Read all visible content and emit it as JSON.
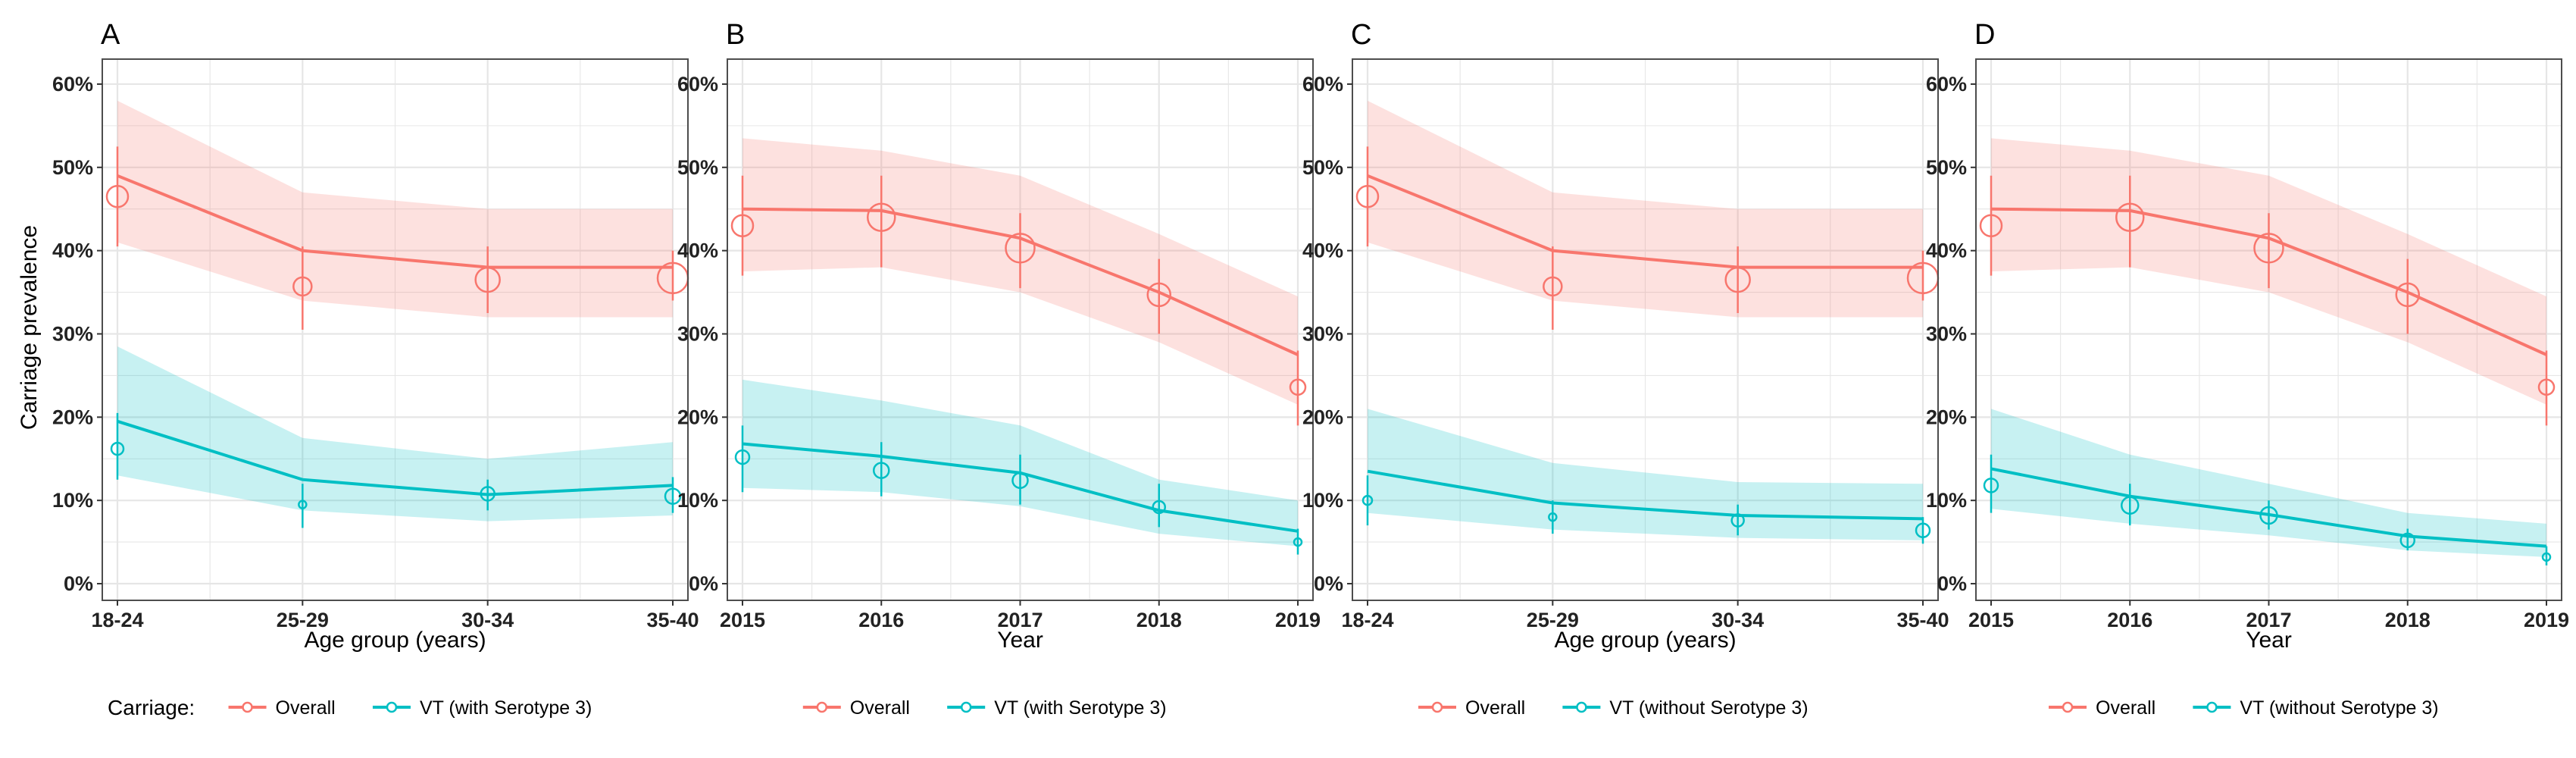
{
  "figure": {
    "y_axis_title": "Carriage prevalence",
    "y_ticks": [
      "0%",
      "10%",
      "20%",
      "30%",
      "40%",
      "50%",
      "60%"
    ]
  },
  "colors": {
    "overall": "#F8766D",
    "vt": "#00BFC4",
    "grid": "#E6E6E6",
    "panel_border": "#4D4D4D"
  },
  "chart_data": [
    {
      "panel": "A",
      "type": "line",
      "xlabel": "Age group (years)",
      "ylabel": "Carriage prevalence",
      "categories": [
        "18-24",
        "25-29",
        "30-34",
        "35-40"
      ],
      "ylim": [
        -0.02,
        0.63
      ],
      "legend": {
        "title": "Carriage:",
        "entries": [
          "Overall",
          "VT (with Serotype 3)"
        ]
      },
      "series": [
        {
          "name": "Overall",
          "model": [
            0.49,
            0.4,
            0.38,
            0.38
          ],
          "ribbon_low": [
            0.41,
            0.34,
            0.32,
            0.32
          ],
          "ribbon_high": [
            0.58,
            0.47,
            0.45,
            0.45
          ],
          "observed": [
            0.465,
            0.357,
            0.365,
            0.367
          ],
          "err_low": [
            0.405,
            0.305,
            0.325,
            0.34
          ],
          "err_high": [
            0.525,
            0.405,
            0.405,
            0.4
          ],
          "point_size": [
            14,
            12,
            16,
            20
          ]
        },
        {
          "name": "VT (with Serotype 3)",
          "model": [
            0.195,
            0.125,
            0.107,
            0.118
          ],
          "ribbon_low": [
            0.13,
            0.088,
            0.075,
            0.082
          ],
          "ribbon_high": [
            0.285,
            0.175,
            0.15,
            0.17
          ],
          "observed": [
            0.162,
            0.095,
            0.108,
            0.105
          ],
          "err_low": [
            0.125,
            0.067,
            0.088,
            0.085
          ],
          "err_high": [
            0.205,
            0.12,
            0.125,
            0.128
          ],
          "point_size": [
            8,
            5,
            9,
            10
          ]
        }
      ]
    },
    {
      "panel": "B",
      "type": "line",
      "xlabel": "Year",
      "ylabel": "",
      "categories": [
        "2015",
        "2016",
        "2017",
        "2018",
        "2019"
      ],
      "ylim": [
        -0.02,
        0.63
      ],
      "legend": {
        "title": "",
        "entries": [
          "Overall",
          "VT (with Serotype 3)"
        ]
      },
      "series": [
        {
          "name": "Overall",
          "model": [
            0.45,
            0.448,
            0.415,
            0.35,
            0.275
          ],
          "ribbon_low": [
            0.375,
            0.38,
            0.35,
            0.29,
            0.215
          ],
          "ribbon_high": [
            0.535,
            0.52,
            0.49,
            0.42,
            0.345
          ],
          "observed": [
            0.43,
            0.44,
            0.403,
            0.347,
            0.236
          ],
          "err_low": [
            0.37,
            0.38,
            0.355,
            0.3,
            0.19
          ],
          "err_high": [
            0.49,
            0.49,
            0.445,
            0.39,
            0.28
          ],
          "point_size": [
            14,
            18,
            19,
            15,
            10
          ]
        },
        {
          "name": "VT (with Serotype 3)",
          "model": [
            0.168,
            0.153,
            0.133,
            0.088,
            0.063
          ],
          "ribbon_low": [
            0.115,
            0.11,
            0.093,
            0.06,
            0.045
          ],
          "ribbon_high": [
            0.245,
            0.22,
            0.19,
            0.125,
            0.1
          ],
          "observed": [
            0.152,
            0.136,
            0.124,
            0.092,
            0.05
          ],
          "err_low": [
            0.11,
            0.105,
            0.095,
            0.068,
            0.035
          ],
          "err_high": [
            0.19,
            0.17,
            0.155,
            0.12,
            0.066
          ],
          "point_size": [
            9,
            10,
            10,
            8,
            5
          ]
        }
      ]
    },
    {
      "panel": "C",
      "type": "line",
      "xlabel": "Age group (years)",
      "ylabel": "",
      "categories": [
        "18-24",
        "25-29",
        "30-34",
        "35-40"
      ],
      "ylim": [
        -0.02,
        0.63
      ],
      "legend": {
        "title": "",
        "entries": [
          "Overall",
          "VT (without Serotype 3)"
        ]
      },
      "series": [
        {
          "name": "Overall",
          "model": [
            0.49,
            0.4,
            0.38,
            0.38
          ],
          "ribbon_low": [
            0.41,
            0.34,
            0.32,
            0.32
          ],
          "ribbon_high": [
            0.58,
            0.47,
            0.45,
            0.45
          ],
          "observed": [
            0.465,
            0.357,
            0.365,
            0.367
          ],
          "err_low": [
            0.405,
            0.305,
            0.325,
            0.34
          ],
          "err_high": [
            0.525,
            0.405,
            0.405,
            0.4
          ],
          "point_size": [
            14,
            12,
            16,
            20
          ]
        },
        {
          "name": "VT (without Serotype 3)",
          "model": [
            0.135,
            0.097,
            0.082,
            0.078
          ],
          "ribbon_low": [
            0.085,
            0.065,
            0.055,
            0.052
          ],
          "ribbon_high": [
            0.21,
            0.145,
            0.122,
            0.12
          ],
          "observed": [
            0.1,
            0.08,
            0.076,
            0.064
          ],
          "err_low": [
            0.07,
            0.06,
            0.058,
            0.048
          ],
          "err_high": [
            0.13,
            0.1,
            0.095,
            0.08
          ],
          "point_size": [
            6,
            5,
            8,
            9
          ]
        }
      ]
    },
    {
      "panel": "D",
      "type": "line",
      "xlabel": "Year",
      "ylabel": "",
      "categories": [
        "2015",
        "2016",
        "2017",
        "2018",
        "2019"
      ],
      "ylim": [
        -0.02,
        0.63
      ],
      "legend": {
        "title": "",
        "entries": [
          "Overall",
          "VT (without Serotype 3)"
        ]
      },
      "series": [
        {
          "name": "Overall",
          "model": [
            0.45,
            0.448,
            0.415,
            0.35,
            0.275
          ],
          "ribbon_low": [
            0.375,
            0.38,
            0.35,
            0.29,
            0.215
          ],
          "ribbon_high": [
            0.535,
            0.52,
            0.49,
            0.42,
            0.345
          ],
          "observed": [
            0.43,
            0.44,
            0.403,
            0.347,
            0.236
          ],
          "err_low": [
            0.37,
            0.38,
            0.355,
            0.3,
            0.19
          ],
          "err_high": [
            0.49,
            0.49,
            0.445,
            0.39,
            0.28
          ],
          "point_size": [
            14,
            18,
            19,
            15,
            10
          ]
        },
        {
          "name": "VT (without Serotype 3)",
          "model": [
            0.138,
            0.105,
            0.083,
            0.057,
            0.045
          ],
          "ribbon_low": [
            0.09,
            0.072,
            0.058,
            0.04,
            0.032
          ],
          "ribbon_high": [
            0.21,
            0.155,
            0.12,
            0.085,
            0.072
          ],
          "observed": [
            0.118,
            0.094,
            0.082,
            0.052,
            0.032
          ],
          "err_low": [
            0.085,
            0.07,
            0.065,
            0.04,
            0.022
          ],
          "err_high": [
            0.155,
            0.12,
            0.1,
            0.066,
            0.045
          ],
          "point_size": [
            9,
            11,
            11,
            9,
            5
          ]
        }
      ]
    }
  ]
}
